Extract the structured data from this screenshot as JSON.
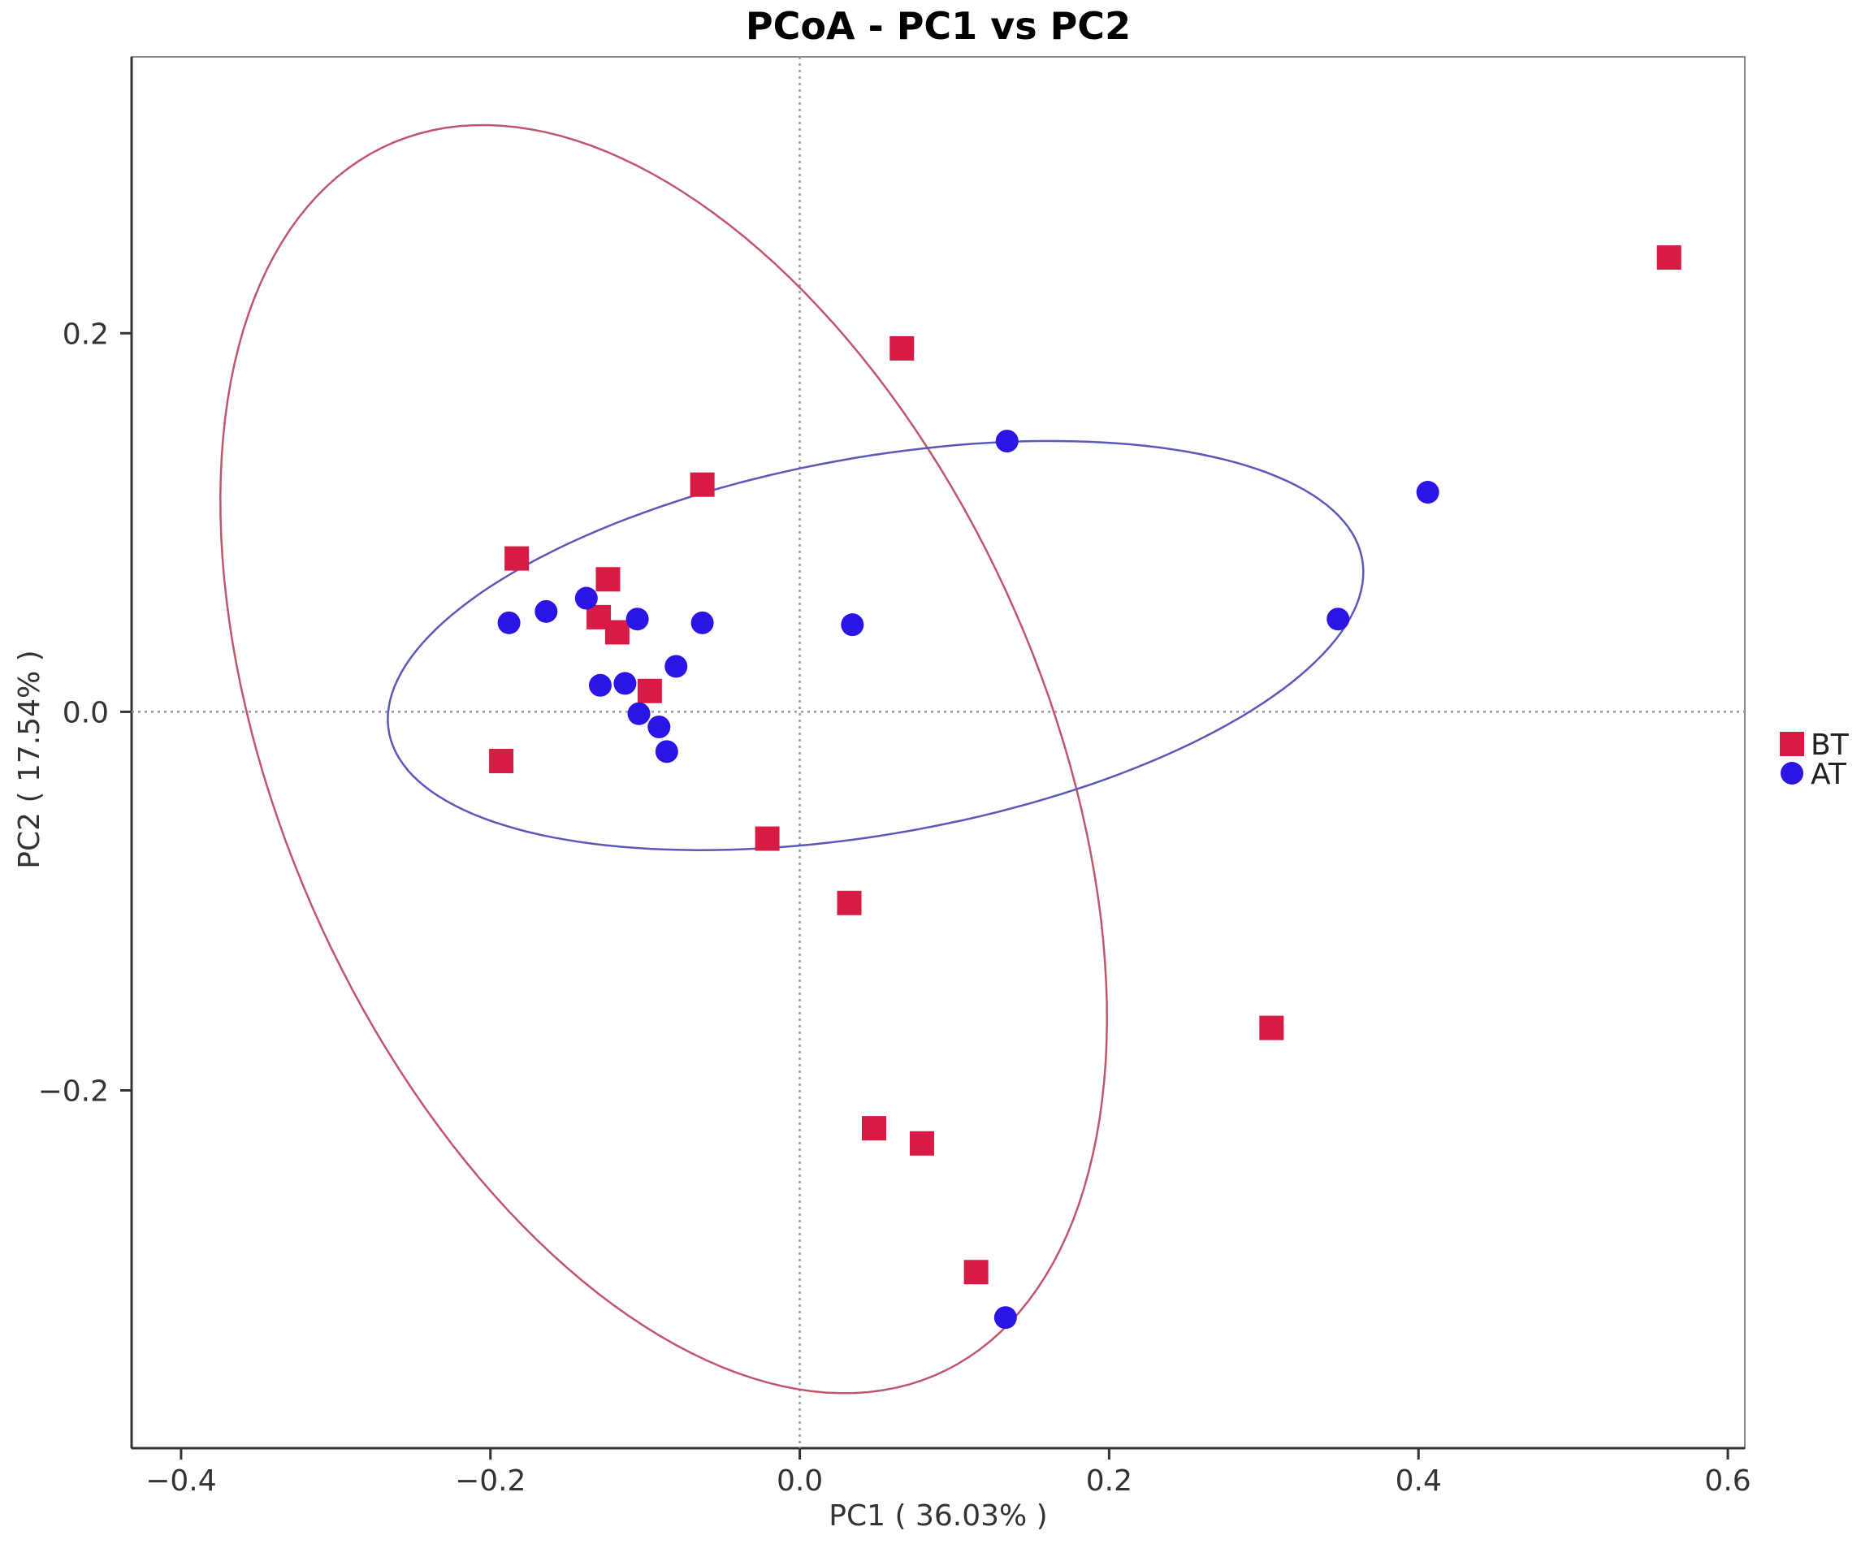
{
  "chart_data": {
    "type": "scatter",
    "title": "PCoA - PC1 vs PC2",
    "xlabel": "PC1 ( 36.03% )",
    "ylabel": "PC2 ( 17.54% )",
    "xlim": [
      -0.432,
      0.611
    ],
    "ylim": [
      -0.389,
      0.346
    ],
    "xticks": [
      -0.4,
      -0.2,
      0.0,
      0.2,
      0.4,
      0.6
    ],
    "xtick_labels": [
      "−0.4",
      "−0.2",
      "0.0",
      "0.2",
      "0.4",
      "0.6"
    ],
    "yticks": [
      0.2,
      0.0,
      -0.2
    ],
    "ytick_labels": [
      "0.2",
      "0.0",
      "−0.2"
    ],
    "reference_lines": {
      "x": 0.0,
      "y": 0.0
    },
    "legend_position": "right",
    "series": [
      {
        "name": "BT",
        "marker": "square",
        "color": "#d81b45",
        "ellipse_color": "#c0566e",
        "points": [
          [
            0.562,
            0.24
          ],
          [
            0.066,
            0.192
          ],
          [
            -0.063,
            0.12
          ],
          [
            -0.183,
            0.081
          ],
          [
            -0.124,
            0.07
          ],
          [
            -0.13,
            0.05
          ],
          [
            -0.118,
            0.042
          ],
          [
            -0.097,
            0.011
          ],
          [
            -0.193,
            -0.026
          ],
          [
            -0.021,
            -0.067
          ],
          [
            0.032,
            -0.101
          ],
          [
            0.305,
            -0.167
          ],
          [
            0.048,
            -0.22
          ],
          [
            0.079,
            -0.228
          ],
          [
            0.114,
            -0.296
          ]
        ],
        "ellipse": {
          "cx": -0.088,
          "cy": -0.025,
          "rx": 0.373,
          "ry": 0.235,
          "angle_deg": -55.5
        }
      },
      {
        "name": "AT",
        "marker": "circle",
        "color": "#2a14e6",
        "ellipse_color": "#5b58b8",
        "points": [
          [
            0.134,
            0.143
          ],
          [
            0.406,
            0.116
          ],
          [
            -0.138,
            0.06
          ],
          [
            -0.164,
            0.053
          ],
          [
            -0.105,
            0.049
          ],
          [
            -0.063,
            0.047
          ],
          [
            -0.188,
            0.047
          ],
          [
            0.034,
            0.046
          ],
          [
            0.348,
            0.049
          ],
          [
            -0.08,
            0.024
          ],
          [
            -0.113,
            0.015
          ],
          [
            -0.129,
            0.014
          ],
          [
            -0.104,
            -0.001
          ],
          [
            -0.091,
            -0.008
          ],
          [
            -0.086,
            -0.021
          ],
          [
            0.133,
            -0.32
          ]
        ],
        "ellipse": {
          "cx": 0.049,
          "cy": 0.035,
          "rx": 0.318,
          "ry": 0.1,
          "angle_deg": 7.8
        }
      }
    ]
  }
}
